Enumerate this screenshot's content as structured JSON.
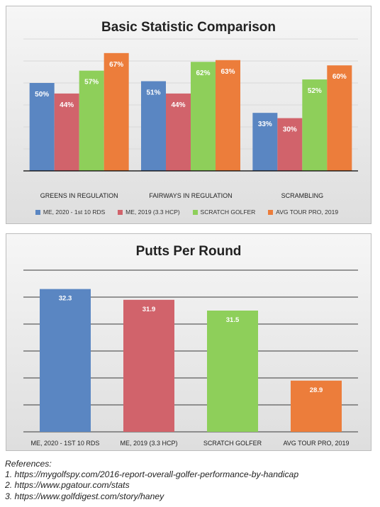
{
  "chart_data": [
    {
      "type": "bar",
      "title": "Basic Statistic Comparison",
      "categories": [
        "GREENS IN REGULATION",
        "FAIRWAYS IN REGULATION",
        "SCRAMBLING"
      ],
      "series": [
        {
          "name": "ME, 2020 - 1st 10 RDS",
          "color": "#5a86c2",
          "values": [
            50,
            51,
            33
          ],
          "labels": [
            "50%",
            "51%",
            "33%"
          ]
        },
        {
          "name": "ME, 2019 (3.3 HCP)",
          "color": "#d1636b",
          "values": [
            44,
            44,
            30
          ],
          "labels": [
            "44%",
            "44%",
            "30%"
          ]
        },
        {
          "name": "SCRATCH GOLFER",
          "color": "#8ecf5a",
          "values": [
            57,
            62,
            52
          ],
          "labels": [
            "57%",
            "62%",
            "52%"
          ]
        },
        {
          "name": "AVG TOUR PRO, 2019",
          "color": "#ec7d3b",
          "values": [
            67,
            63,
            60
          ],
          "labels": [
            "67%",
            "63%",
            "60%"
          ]
        }
      ],
      "ylim": [
        0,
        75
      ],
      "grid": true,
      "legend_position": "bottom"
    },
    {
      "type": "bar",
      "title": "Putts Per Round",
      "categories": [
        "ME, 2020 - 1ST 10 RDS",
        "ME, 2019 (3.3 HCP)",
        "SCRATCH GOLFER",
        "AVG TOUR PRO, 2019"
      ],
      "values": [
        32.3,
        31.9,
        31.5,
        28.9
      ],
      "labels": [
        "32.3",
        "31.9",
        "31.5",
        "28.9"
      ],
      "colors": [
        "#5a86c2",
        "#d1636b",
        "#8ecf5a",
        "#ec7d3b"
      ],
      "ylim": [
        27,
        33
      ],
      "grid": true
    }
  ],
  "references": {
    "heading": "References:",
    "items": [
      "1. https://mygolfspy.com/2016-report-overall-golfer-performance-by-handicap",
      "2. https://www.pgatour.com/stats",
      "3. https://www.golfdigest.com/story/haney"
    ]
  }
}
